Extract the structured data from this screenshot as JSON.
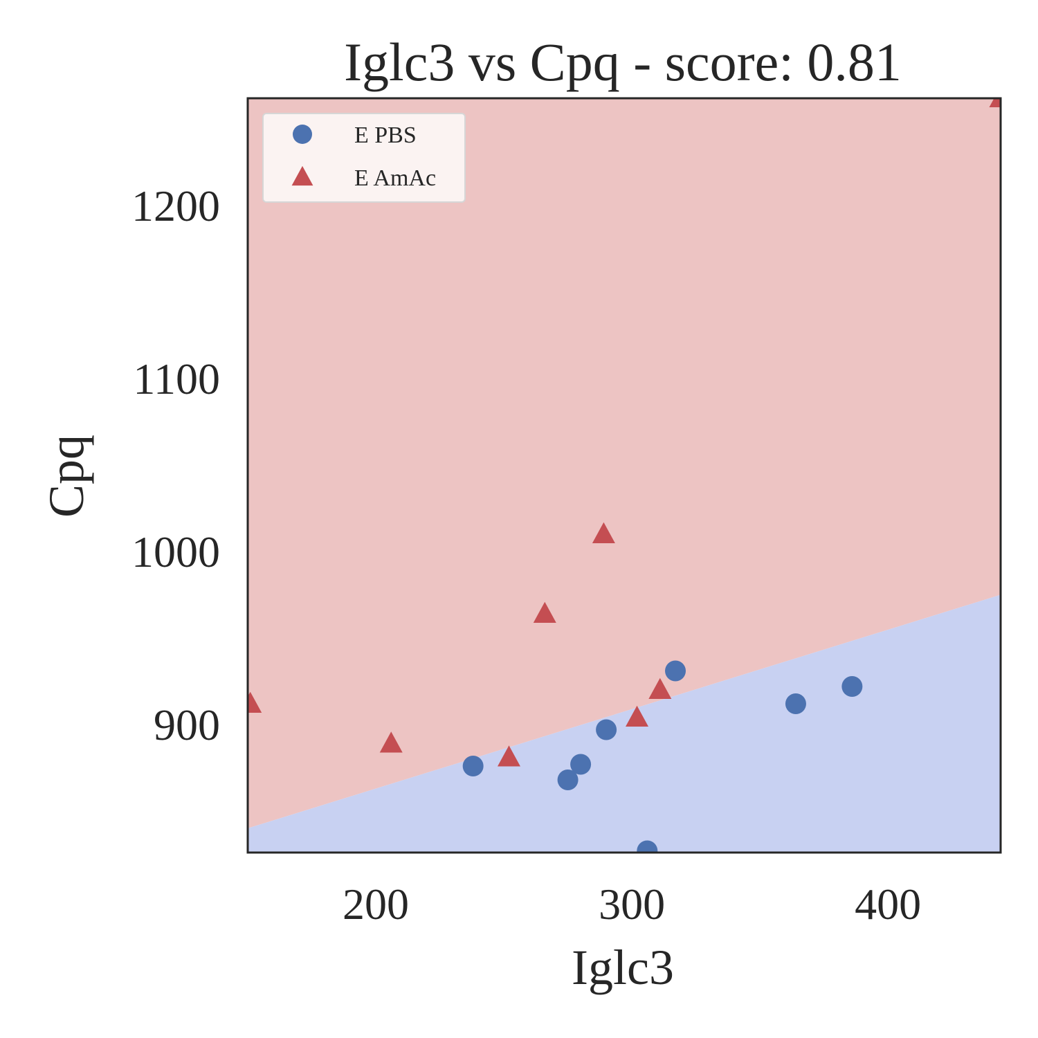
{
  "chart_data": {
    "type": "scatter",
    "title": "Iglc3 vs Cpq - score: 0.81",
    "xlabel": "Iglc3",
    "ylabel": "Cpq",
    "xlim": [
      150,
      444
    ],
    "ylim": [
      826,
      1262
    ],
    "xticks": [
      200,
      300,
      400
    ],
    "yticks": [
      900,
      1000,
      1100,
      1200
    ],
    "grid": false,
    "legend_position": "top-left",
    "decision_boundary": {
      "x": [
        150,
        444
      ],
      "y": [
        840,
        975
      ],
      "above_region": "E AmAc",
      "below_region": "E PBS",
      "above_color": "#edc4c3",
      "below_color": "#c8d1f2"
    },
    "series": [
      {
        "name": "E PBS",
        "marker": "circle",
        "color": "#4c72b0",
        "points": [
          [
            238,
            876
          ],
          [
            275,
            868
          ],
          [
            280,
            877
          ],
          [
            290,
            897
          ],
          [
            306,
            827
          ],
          [
            317,
            931
          ],
          [
            364,
            912
          ],
          [
            386,
            922
          ]
        ]
      },
      {
        "name": "E AmAc",
        "marker": "triangle",
        "color": "#c44e52",
        "points": [
          [
            151,
            912
          ],
          [
            206,
            889
          ],
          [
            252,
            881
          ],
          [
            266,
            964
          ],
          [
            289,
            1010
          ],
          [
            302,
            904
          ],
          [
            311,
            920
          ],
          [
            444,
            1262
          ]
        ]
      }
    ]
  }
}
